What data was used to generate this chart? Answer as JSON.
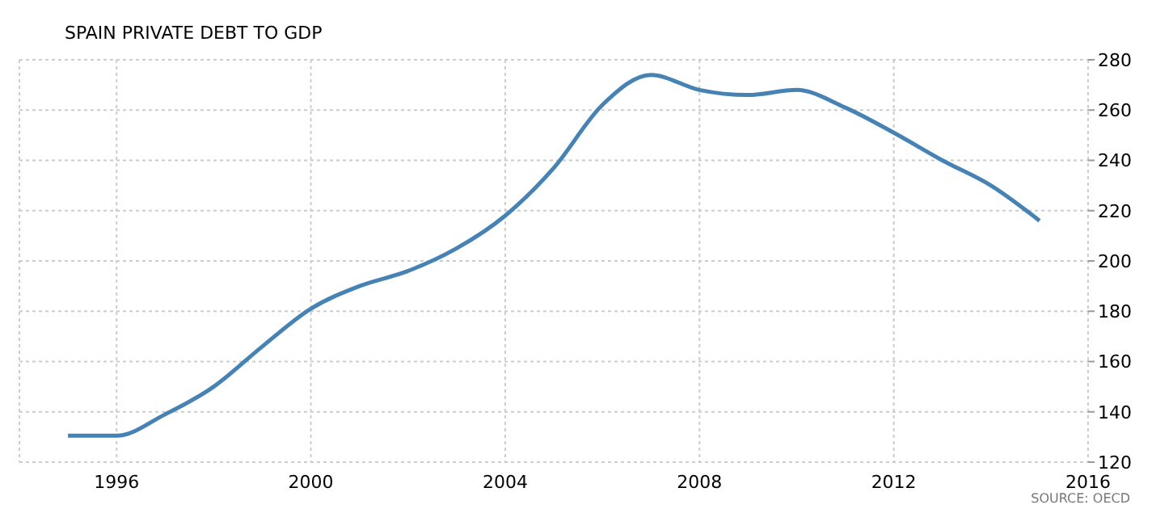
{
  "chart_data": {
    "type": "line",
    "title": "SPAIN PRIVATE DEBT TO GDP",
    "annotations": [
      "SOURCE: OECD"
    ],
    "x": [
      1995,
      1996,
      1997,
      1998,
      1999,
      2000,
      2001,
      2002,
      2003,
      2004,
      2005,
      2006,
      2007,
      2008,
      2009,
      2010,
      2011,
      2012,
      2013,
      2014,
      2015
    ],
    "series": [
      {
        "color": "#4682b4",
        "values": [
          130.5,
          130.5,
          139,
          150,
          166,
          181,
          190,
          196,
          205,
          218,
          237,
          262,
          274,
          268,
          266,
          268,
          261,
          251,
          240,
          230,
          216
        ]
      }
    ],
    "xlim": [
      1994,
      2016
    ],
    "xticks": [
      1996,
      2000,
      2004,
      2008,
      2012,
      2016
    ],
    "ylim": [
      120,
      280
    ],
    "yticks": [
      120,
      140,
      160,
      180,
      200,
      220,
      240,
      260,
      280
    ],
    "grid": true,
    "legend": false,
    "marker": "none",
    "line_style": "solid"
  }
}
